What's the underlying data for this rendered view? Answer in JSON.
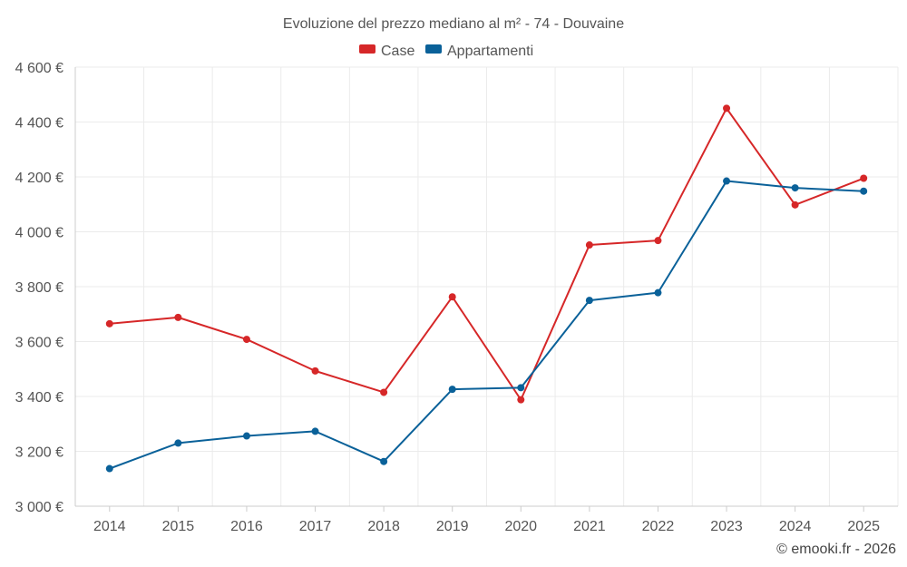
{
  "chart_data": {
    "type": "line",
    "title": "Evoluzione del prezzo mediano al m² - 74 - Douvaine",
    "categories": [
      "2014",
      "2015",
      "2016",
      "2017",
      "2018",
      "2019",
      "2020",
      "2021",
      "2022",
      "2023",
      "2024",
      "2025"
    ],
    "series": [
      {
        "name": "Case",
        "color": "#d62728",
        "values": [
          3665,
          3688,
          3608,
          3493,
          3415,
          3763,
          3388,
          3952,
          3968,
          4450,
          4098,
          4195
        ]
      },
      {
        "name": "Appartamenti",
        "color": "#0a6199",
        "values": [
          3137,
          3230,
          3256,
          3273,
          3163,
          3426,
          3432,
          3750,
          3778,
          4185,
          4160,
          4148
        ]
      }
    ],
    "ylim": [
      3000,
      4600
    ],
    "yticks": [
      3000,
      3200,
      3400,
      3600,
      3800,
      4000,
      4200,
      4400,
      4600
    ],
    "ytick_labels": [
      "3 000 €",
      "3 200 €",
      "3 400 €",
      "3 600 €",
      "3 800 €",
      "4 000 €",
      "4 200 €",
      "4 400 €",
      "4 600 €"
    ],
    "xlabel": "",
    "ylabel": "",
    "grid": true,
    "legend_position": "top-center"
  },
  "credit": "© emooki.fr - 2026"
}
